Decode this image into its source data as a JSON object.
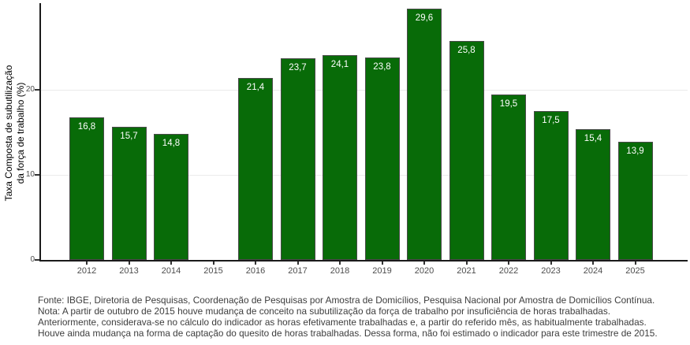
{
  "chart_data": {
    "type": "bar",
    "title": "",
    "xlabel": "",
    "ylabel": "Taxa Composta de subutilização da força de trabalho (%)",
    "ylabel_lines": [
      "Taxa Composta de subutilização",
      "da força de trabalho (%)"
    ],
    "categories": [
      "2012",
      "2013",
      "2014",
      "2015",
      "2016",
      "2017",
      "2018",
      "2019",
      "2020",
      "2021",
      "2022",
      "2023",
      "2024",
      "2025"
    ],
    "values": [
      16.8,
      15.7,
      14.8,
      null,
      21.4,
      23.7,
      24.1,
      23.8,
      29.6,
      25.8,
      19.5,
      17.5,
      15.4,
      13.9
    ],
    "values_display": [
      "16,8",
      "15,7",
      "14,8",
      null,
      "21,4",
      "23,7",
      "24,1",
      "23,8",
      "29,6",
      "25,8",
      "19,5",
      "17,5",
      "15,4",
      "13,9"
    ],
    "yticks": [
      0,
      10,
      20
    ],
    "ylim": [
      0,
      30.6
    ],
    "grid": "horizontal-only",
    "legend": "none",
    "colors": {
      "bar_fill": "#086b08",
      "bar_border": "#4a4a4a",
      "axis_line": "#1a1a1a",
      "gridline": "#ebebeb",
      "tick_mark": "#333333",
      "tick_label": "#4d4d4d",
      "bar_label_text": "#ffffff",
      "background": "#ffffff"
    }
  },
  "footnote": {
    "lines": [
      "Fonte: IBGE, Diretoria de Pesquisas, Coordenação de Pesquisas por Amostra de Domicílios, Pesquisa Nacional por Amostra de Domicílios Contínua.",
      "Nota: A partir de outubro de 2015 houve mudança de conceito na subutilização da força de trabalho por insuficiência de horas trabalhadas.",
      "Anteriormente, considerava-se no cálculo do indicador as horas efetivamente trabalhadas e, a partir do referido mês, as habitualmente trabalhadas.",
      "Houve ainda mudança na forma de captação do quesito de horas trabalhadas. Dessa forma, não foi estimado o indicador para este trimestre de 2015."
    ]
  }
}
